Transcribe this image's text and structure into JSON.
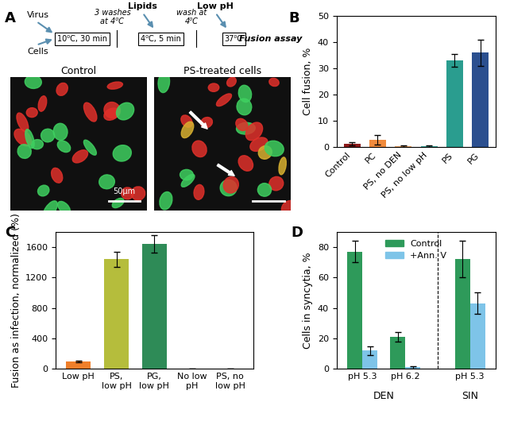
{
  "diagram": {
    "panel": "A",
    "inputs": [
      "Virus",
      "Cells"
    ],
    "steps": [
      {
        "box": "10⁰C, 30 min",
        "after": "3 washes at 4⁰C",
        "add": null
      },
      {
        "box": "4⁰C, 5 min",
        "after": "wash at 4⁰C",
        "add": "Lipids"
      },
      {
        "box": "37⁰C",
        "after": null,
        "add": "Low pH"
      }
    ],
    "result": "Fusion assay",
    "images": [
      {
        "title": "Control",
        "scale_bar": "50μm"
      },
      {
        "title": "PS-treated cells"
      }
    ]
  },
  "chart_data": [
    {
      "panel": "B",
      "type": "bar",
      "categories": [
        "Control",
        "PC",
        "PS, no DEN",
        "PS, no low pH",
        "PS",
        "PG"
      ],
      "values": [
        1.3,
        2.7,
        0.5,
        0.5,
        33,
        36
      ],
      "error": [
        0.6,
        1.8,
        0.3,
        0.3,
        2.5,
        5
      ],
      "colors": [
        "#8b1a1a",
        "#f08a3c",
        "#e9a060",
        "#3aa89a",
        "#2a9d8f",
        "#2b4f8f"
      ],
      "y_label": "Cell fusion, %",
      "ylim": [
        0,
        50
      ],
      "yticks": [
        0,
        10,
        20,
        30,
        40,
        50
      ]
    },
    {
      "panel": "C",
      "type": "bar",
      "categories": [
        "Low pH",
        "PS, low pH",
        "PG, low pH",
        "No low pH",
        "PS, no low pH"
      ],
      "values": [
        100,
        1440,
        1640,
        5,
        5
      ],
      "error": [
        8,
        100,
        110,
        2,
        2
      ],
      "colors": [
        "#f07f2a",
        "#b5bd3c",
        "#2e8b57",
        "#c0392b",
        "#2a9d8f"
      ],
      "y_label": "Fusion as infection, normalized (%)",
      "ylim": [
        0,
        1800
      ],
      "yticks": [
        0,
        400,
        800,
        1200,
        1600
      ]
    },
    {
      "panel": "D",
      "type": "bar",
      "categories": [
        "pH 5.3",
        "pH 6.2",
        "pH 5.3"
      ],
      "groups": [
        "DEN",
        "DEN",
        "SIN"
      ],
      "series": [
        {
          "name": "Control",
          "color": "#2e9a5a",
          "values": [
            77,
            21,
            72
          ],
          "error": [
            7,
            3,
            12
          ]
        },
        {
          "name": "+Ann. V",
          "color": "#7ec4e8",
          "values": [
            12,
            1,
            43
          ],
          "error": [
            3,
            1,
            7
          ]
        }
      ],
      "y_label": "Cells in syncytia, %",
      "ylim": [
        0,
        90
      ],
      "yticks": [
        0,
        20,
        40,
        60,
        80
      ],
      "legend": "upper center"
    }
  ]
}
